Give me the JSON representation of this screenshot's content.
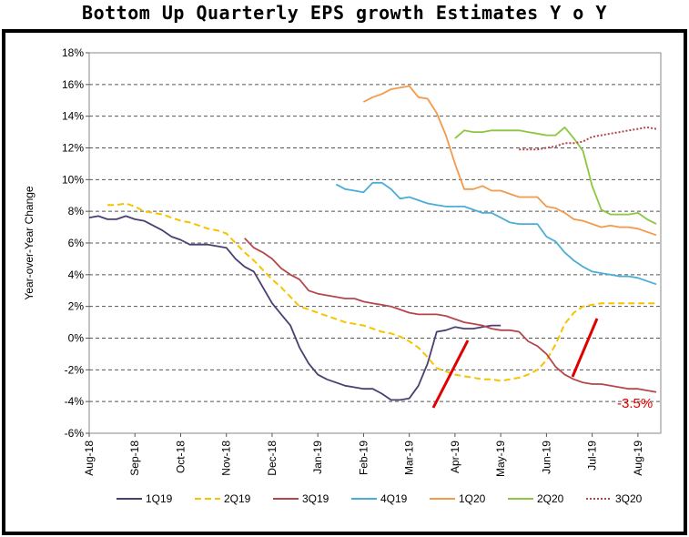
{
  "chart_data": {
    "type": "line",
    "title": "Bottom Up Quarterly EPS growth Estimates Y o Y",
    "ylabel": "Year-over-Year Change",
    "xlabel": "",
    "ylim": [
      -6,
      18
    ],
    "yticks": [
      "-6%",
      "-4%",
      "-2%",
      "0%",
      "2%",
      "4%",
      "6%",
      "8%",
      "10%",
      "12%",
      "14%",
      "16%",
      "18%"
    ],
    "xlim": [
      0,
      12.5
    ],
    "xticks": [
      "Aug-18",
      "Sep-18",
      "Oct-18",
      "Nov-18",
      "Dec-18",
      "Jan-19",
      "Feb-19",
      "Mar-19",
      "Apr-19",
      "May-19",
      "Jun-19",
      "Jul-19",
      "Aug-19"
    ],
    "grid": true,
    "legend_position": "bottom",
    "annotation": "-3.5%",
    "series": [
      {
        "name": "1Q19",
        "color": "#4b3f72",
        "dash": "solid",
        "x": [
          0,
          0.2,
          0.4,
          0.6,
          0.8,
          1.0,
          1.2,
          1.4,
          1.6,
          1.8,
          2.0,
          2.2,
          2.4,
          2.6,
          2.8,
          3.0,
          3.2,
          3.4,
          3.6,
          3.8,
          4.0,
          4.2,
          4.4,
          4.6,
          4.8,
          5.0,
          5.2,
          5.4,
          5.6,
          5.8,
          6.0,
          6.2,
          6.4,
          6.6,
          6.8,
          7.0,
          7.2,
          7.4,
          7.6,
          7.8,
          8.0,
          8.2,
          8.4,
          8.6,
          8.8,
          9.0
        ],
        "y": [
          7.6,
          7.7,
          7.5,
          7.5,
          7.7,
          7.5,
          7.4,
          7.1,
          6.8,
          6.4,
          6.2,
          5.9,
          5.9,
          5.9,
          5.8,
          5.7,
          5.0,
          4.5,
          4.2,
          3.2,
          2.2,
          1.5,
          0.8,
          -0.6,
          -1.6,
          -2.3,
          -2.6,
          -2.8,
          -3.0,
          -3.1,
          -3.2,
          -3.2,
          -3.5,
          -3.9,
          -3.9,
          -3.8,
          -3.0,
          -1.6,
          0.4,
          0.5,
          0.7,
          0.6,
          0.6,
          0.7,
          0.8,
          0.8
        ]
      },
      {
        "name": "2Q19",
        "color": "#f5c400",
        "dash": "dashed",
        "x": [
          0.4,
          0.6,
          0.8,
          1.0,
          1.2,
          1.4,
          1.6,
          1.8,
          2.0,
          2.2,
          2.4,
          2.6,
          2.8,
          3.0,
          3.2,
          3.4,
          3.6,
          3.8,
          4.0,
          4.2,
          4.4,
          4.6,
          4.8,
          5.0,
          5.2,
          5.4,
          5.6,
          5.8,
          6.0,
          6.2,
          6.4,
          6.6,
          6.8,
          7.0,
          7.2,
          7.4,
          7.6,
          7.8,
          8.0,
          8.2,
          8.4,
          8.6,
          8.8,
          9.0,
          9.2,
          9.4,
          9.6,
          9.8,
          10.0,
          10.2,
          10.4,
          10.6,
          10.8,
          11.0,
          11.2,
          11.4,
          11.6,
          11.8,
          12.0,
          12.2,
          12.4
        ],
        "y": [
          8.4,
          8.4,
          8.5,
          8.3,
          8.0,
          7.9,
          7.8,
          7.6,
          7.4,
          7.3,
          7.1,
          6.9,
          6.8,
          6.6,
          6.0,
          5.4,
          4.9,
          4.3,
          3.7,
          3.2,
          2.6,
          2.0,
          1.8,
          1.6,
          1.4,
          1.2,
          1.0,
          0.9,
          0.8,
          0.6,
          0.4,
          0.3,
          0.1,
          -0.2,
          -0.6,
          -1.2,
          -1.9,
          -2.1,
          -2.3,
          -2.4,
          -2.5,
          -2.6,
          -2.6,
          -2.7,
          -2.6,
          -2.5,
          -2.3,
          -2.0,
          -1.4,
          -0.4,
          0.9,
          1.6,
          2.0,
          2.1,
          2.2,
          2.2,
          2.2,
          2.2,
          2.2,
          2.2,
          2.2
        ]
      },
      {
        "name": "3Q19",
        "color": "#b5464c",
        "dash": "solid",
        "x": [
          3.4,
          3.6,
          3.8,
          4.0,
          4.2,
          4.4,
          4.6,
          4.8,
          5.0,
          5.2,
          5.4,
          5.6,
          5.8,
          6.0,
          6.2,
          6.4,
          6.6,
          6.8,
          7.0,
          7.2,
          7.4,
          7.6,
          7.8,
          8.0,
          8.2,
          8.4,
          8.6,
          8.8,
          9.0,
          9.2,
          9.4,
          9.6,
          9.8,
          10.0,
          10.2,
          10.4,
          10.6,
          10.8,
          11.0,
          11.2,
          11.4,
          11.6,
          11.8,
          12.0,
          12.2,
          12.4
        ],
        "y": [
          6.3,
          5.7,
          5.4,
          5.0,
          4.4,
          4.0,
          3.7,
          3.0,
          2.8,
          2.7,
          2.6,
          2.5,
          2.5,
          2.3,
          2.2,
          2.1,
          2.0,
          1.8,
          1.6,
          1.5,
          1.5,
          1.5,
          1.4,
          1.2,
          1.0,
          0.9,
          0.8,
          0.6,
          0.5,
          0.5,
          0.4,
          -0.2,
          -0.5,
          -1.0,
          -1.8,
          -2.3,
          -2.6,
          -2.8,
          -2.9,
          -2.9,
          -3.0,
          -3.1,
          -3.2,
          -3.2,
          -3.3,
          -3.4
        ]
      },
      {
        "name": "4Q19",
        "color": "#4aaed6",
        "dash": "solid",
        "x": [
          5.4,
          5.6,
          5.8,
          6.0,
          6.2,
          6.4,
          6.6,
          6.8,
          7.0,
          7.2,
          7.4,
          7.6,
          7.8,
          8.0,
          8.2,
          8.4,
          8.6,
          8.8,
          9.0,
          9.2,
          9.4,
          9.6,
          9.8,
          10.0,
          10.2,
          10.4,
          10.6,
          10.8,
          11.0,
          11.2,
          11.4,
          11.6,
          11.8,
          12.0,
          12.2,
          12.4
        ],
        "y": [
          9.7,
          9.4,
          9.3,
          9.2,
          9.8,
          9.8,
          9.4,
          8.8,
          8.9,
          8.7,
          8.5,
          8.4,
          8.3,
          8.3,
          8.3,
          8.1,
          7.9,
          7.9,
          7.6,
          7.3,
          7.2,
          7.2,
          7.2,
          6.4,
          6.1,
          5.4,
          4.9,
          4.5,
          4.2,
          4.1,
          4.0,
          3.9,
          3.9,
          3.8,
          3.6,
          3.4
        ]
      },
      {
        "name": "1Q20",
        "color": "#f39a4b",
        "dash": "solid",
        "x": [
          6.0,
          6.2,
          6.4,
          6.6,
          6.8,
          7.0,
          7.2,
          7.4,
          7.6,
          7.8,
          8.0,
          8.2,
          8.4,
          8.6,
          8.8,
          9.0,
          9.2,
          9.4,
          9.6,
          9.8,
          10.0,
          10.2,
          10.4,
          10.6,
          10.8,
          11.0,
          11.2,
          11.4,
          11.6,
          11.8,
          12.0,
          12.2,
          12.4
        ],
        "y": [
          14.9,
          15.2,
          15.4,
          15.7,
          15.8,
          15.9,
          15.2,
          15.1,
          14.2,
          12.8,
          11.0,
          9.4,
          9.4,
          9.6,
          9.3,
          9.3,
          9.1,
          8.9,
          8.9,
          8.9,
          8.3,
          8.2,
          7.9,
          7.5,
          7.4,
          7.2,
          7.0,
          7.1,
          7.0,
          7.0,
          6.9,
          6.7,
          6.5
        ]
      },
      {
        "name": "2Q20",
        "color": "#8dc63f",
        "dash": "solid",
        "x": [
          8.0,
          8.2,
          8.4,
          8.6,
          8.8,
          9.0,
          9.2,
          9.4,
          9.6,
          9.8,
          10.0,
          10.2,
          10.4,
          10.6,
          10.8,
          11.0,
          11.2,
          11.4,
          11.6,
          11.8,
          12.0,
          12.2,
          12.4
        ],
        "y": [
          12.6,
          13.1,
          13.0,
          13.0,
          13.1,
          13.1,
          13.1,
          13.1,
          13.0,
          12.9,
          12.8,
          12.8,
          13.3,
          12.6,
          11.8,
          9.6,
          8.1,
          7.8,
          7.8,
          7.8,
          7.9,
          7.5,
          7.2
        ]
      },
      {
        "name": "3Q20",
        "color": "#b5464c",
        "dash": "dotted",
        "x": [
          9.4,
          9.6,
          9.8,
          10.0,
          10.2,
          10.4,
          10.6,
          10.8,
          11.0,
          11.2,
          11.4,
          11.6,
          11.8,
          12.0,
          12.2,
          12.4
        ],
        "y": [
          11.9,
          11.9,
          11.9,
          12.0,
          12.1,
          12.3,
          12.3,
          12.4,
          12.7,
          12.8,
          12.9,
          13.0,
          13.1,
          13.2,
          13.3,
          13.2
        ]
      }
    ]
  }
}
